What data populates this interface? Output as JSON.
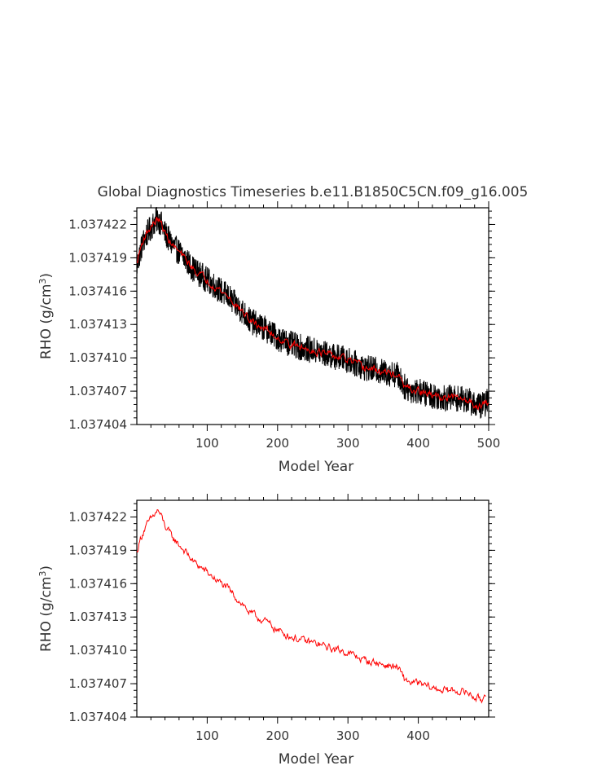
{
  "figure": {
    "title": "Global Diagnostics Timeseries b.e11.B1850C5CN.f09_g16.005"
  },
  "chart_data": [
    {
      "type": "line",
      "xlabel": "Model Year",
      "ylabel": "RHO (g/cm",
      "ylabel_sup": "3",
      "ylabel_close": ")",
      "xlim": [
        0,
        500
      ],
      "ylim": [
        1.037404,
        1.0374235
      ],
      "xticks": [
        100,
        200,
        300,
        400,
        500
      ],
      "xtick_labels": [
        "100",
        "200",
        "300",
        "400",
        "500"
      ],
      "yticks": [
        1.037404,
        1.037407,
        1.03741,
        1.037413,
        1.037416,
        1.037419,
        1.037422
      ],
      "ytick_labels": [
        "1.037404",
        "1.037407",
        "1.037410",
        "1.037413",
        "1.037416",
        "1.037419",
        "1.037422"
      ],
      "series": [
        {
          "style": "monthly",
          "color": "#000000",
          "band": 1.2e-06,
          "x": [
            0,
            5,
            10,
            15,
            20,
            25,
            30,
            35,
            40,
            50,
            60,
            70,
            80,
            90,
            100,
            110,
            120,
            130,
            140,
            150,
            160,
            170,
            180,
            190,
            200,
            210,
            220,
            230,
            240,
            250,
            260,
            270,
            280,
            290,
            300,
            310,
            320,
            330,
            340,
            350,
            360,
            370,
            375,
            380,
            390,
            400,
            410,
            420,
            430,
            440,
            450,
            460,
            470,
            480,
            490,
            500
          ],
          "values": [
            1.0374182,
            1.0374196,
            1.0374206,
            1.0374212,
            1.0374217,
            1.0374222,
            1.0374225,
            1.037422,
            1.0374212,
            1.0374202,
            1.0374195,
            1.0374188,
            1.037418,
            1.0374175,
            1.037417,
            1.0374165,
            1.037416,
            1.0374155,
            1.0374148,
            1.0374142,
            1.0374134,
            1.037413,
            1.0374127,
            1.0374123,
            1.0374118,
            1.0374115,
            1.0374112,
            1.037411,
            1.0374108,
            1.0374107,
            1.0374105,
            1.0374103,
            1.0374101,
            1.03741,
            1.0374098,
            1.0374095,
            1.0374092,
            1.037409,
            1.0374089,
            1.0374087,
            1.0374086,
            1.0374085,
            1.037408,
            1.0374074,
            1.0374071,
            1.037407,
            1.0374068,
            1.0374066,
            1.0374065,
            1.0374064,
            1.0374064,
            1.0374063,
            1.0374062,
            1.0374058,
            1.0374057,
            1.0374061
          ]
        },
        {
          "style": "annual",
          "color": "#ff0000",
          "x": [
            0,
            5,
            10,
            15,
            20,
            25,
            30,
            35,
            40,
            50,
            60,
            70,
            80,
            90,
            100,
            110,
            120,
            130,
            140,
            150,
            160,
            170,
            180,
            190,
            200,
            210,
            220,
            230,
            240,
            250,
            260,
            270,
            280,
            290,
            300,
            310,
            320,
            330,
            340,
            350,
            360,
            370,
            375,
            380,
            390,
            400,
            410,
            420,
            430,
            440,
            450,
            460,
            470,
            480,
            490,
            500
          ],
          "values": [
            1.0374185,
            1.0374198,
            1.0374208,
            1.0374213,
            1.0374218,
            1.0374222,
            1.0374225,
            1.037422,
            1.0374212,
            1.0374202,
            1.0374195,
            1.0374188,
            1.037418,
            1.0374175,
            1.037417,
            1.0374165,
            1.037416,
            1.0374155,
            1.0374148,
            1.0374142,
            1.0374134,
            1.037413,
            1.0374127,
            1.0374123,
            1.0374118,
            1.0374115,
            1.0374112,
            1.037411,
            1.0374108,
            1.0374107,
            1.0374105,
            1.0374103,
            1.0374101,
            1.03741,
            1.0374098,
            1.0374095,
            1.0374092,
            1.037409,
            1.0374089,
            1.0374087,
            1.0374086,
            1.0374085,
            1.037408,
            1.0374074,
            1.0374071,
            1.037407,
            1.0374068,
            1.0374066,
            1.0374065,
            1.0374064,
            1.0374064,
            1.0374063,
            1.0374062,
            1.0374058,
            1.0374057,
            1.0374061
          ]
        }
      ]
    },
    {
      "type": "line",
      "xlabel": "Model Year",
      "ylabel": "RHO (g/cm",
      "ylabel_sup": "3",
      "ylabel_close": ")",
      "xlim": [
        0,
        500
      ],
      "ylim": [
        1.037404,
        1.0374235
      ],
      "xticks": [
        100,
        200,
        300,
        400
      ],
      "xtick_labels": [
        "100",
        "200",
        "300",
        "400"
      ],
      "yticks": [
        1.037404,
        1.037407,
        1.03741,
        1.037413,
        1.037416,
        1.037419,
        1.037422
      ],
      "ytick_labels": [
        "1.037404",
        "1.037407",
        "1.037410",
        "1.037413",
        "1.037416",
        "1.037419",
        "1.037422"
      ],
      "series": [
        {
          "style": "annual",
          "color": "#ff0000",
          "x": [
            0,
            5,
            10,
            15,
            20,
            25,
            30,
            35,
            40,
            50,
            60,
            70,
            80,
            90,
            100,
            110,
            120,
            130,
            140,
            150,
            160,
            170,
            180,
            190,
            200,
            210,
            220,
            230,
            240,
            250,
            260,
            270,
            280,
            290,
            300,
            310,
            320,
            330,
            340,
            350,
            360,
            370,
            375,
            380,
            390,
            400,
            410,
            420,
            430,
            440,
            450,
            460,
            470,
            480,
            490,
            496
          ],
          "values": [
            1.0374188,
            1.03742,
            1.0374208,
            1.0374213,
            1.0374218,
            1.0374222,
            1.0374226,
            1.037422,
            1.0374212,
            1.0374202,
            1.0374195,
            1.0374188,
            1.037418,
            1.0374175,
            1.037417,
            1.0374165,
            1.037416,
            1.0374155,
            1.0374148,
            1.0374142,
            1.0374134,
            1.037413,
            1.0374127,
            1.0374123,
            1.0374118,
            1.0374115,
            1.0374112,
            1.037411,
            1.0374108,
            1.0374107,
            1.0374105,
            1.0374103,
            1.0374101,
            1.03741,
            1.0374098,
            1.0374095,
            1.0374092,
            1.037409,
            1.0374089,
            1.0374087,
            1.0374086,
            1.0374085,
            1.037408,
            1.0374074,
            1.0374071,
            1.037407,
            1.0374068,
            1.0374066,
            1.0374065,
            1.0374064,
            1.0374064,
            1.0374063,
            1.0374062,
            1.0374058,
            1.0374055,
            1.0374062
          ]
        }
      ]
    }
  ]
}
